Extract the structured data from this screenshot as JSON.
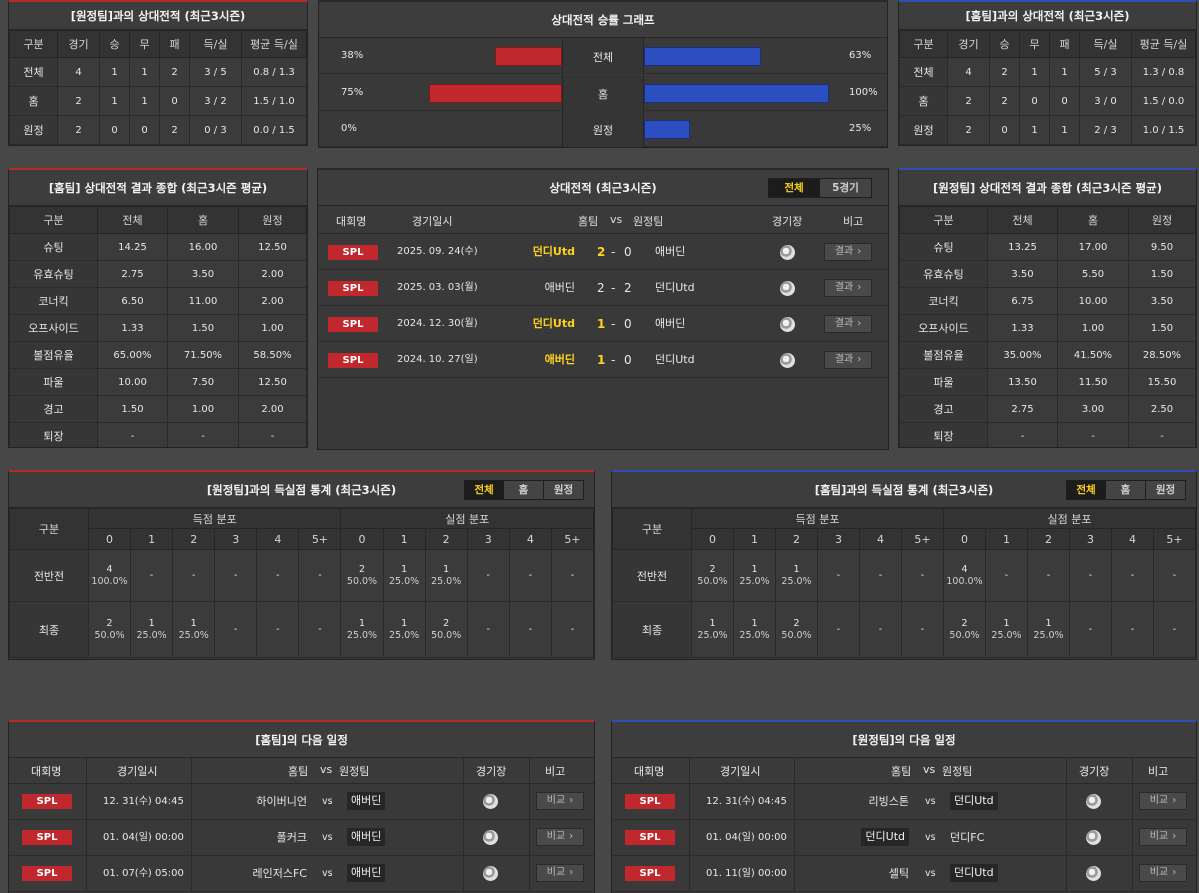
{
  "h2h_left": {
    "title": "[원정팀]과의 상대전적 (최근3시즌)",
    "headers": [
      "구분",
      "경기",
      "승",
      "무",
      "패",
      "득/실",
      "평균 득/실"
    ],
    "rows": [
      [
        "전체",
        "4",
        "1",
        "1",
        "2",
        "3 / 5",
        "0.8 / 1.3"
      ],
      [
        "홈",
        "2",
        "1",
        "1",
        "0",
        "3 / 2",
        "1.5 / 1.0"
      ],
      [
        "원정",
        "2",
        "0",
        "0",
        "2",
        "0 / 3",
        "0.0 / 1.5"
      ]
    ]
  },
  "h2h_right": {
    "title": "[홈팀]과의 상대전적 (최근3시즌)",
    "headers": [
      "구분",
      "경기",
      "승",
      "무",
      "패",
      "득/실",
      "평균 득/실"
    ],
    "rows": [
      [
        "전체",
        "4",
        "2",
        "1",
        "1",
        "5 / 3",
        "1.3 / 0.8"
      ],
      [
        "홈",
        "2",
        "2",
        "0",
        "0",
        "3 / 0",
        "1.5 / 0.0"
      ],
      [
        "원정",
        "2",
        "0",
        "1",
        "1",
        "2 / 3",
        "1.0 / 1.5"
      ]
    ]
  },
  "win_graph": {
    "title": "상대전적 승률 그래프",
    "colors": {
      "home": "#c0282d",
      "away": "#2b4fc0"
    },
    "rows": [
      {
        "label": "전체",
        "left_pct": "38%",
        "left_value": 38,
        "right_pct": "63%",
        "right_value": 63
      },
      {
        "label": "홈",
        "left_pct": "75%",
        "left_value": 75,
        "right_pct": "100%",
        "right_value": 100
      },
      {
        "label": "원정",
        "left_pct": "0%",
        "left_value": 0,
        "right_pct": "25%",
        "right_value": 25
      }
    ]
  },
  "summary_home": {
    "title": "[홈팀] 상대전적 결과 종합 (최근3시즌 평균)",
    "headers": [
      "구분",
      "전체",
      "홈",
      "원정"
    ],
    "rows": [
      [
        "슈팅",
        "14.25",
        "16.00",
        "12.50"
      ],
      [
        "유효슈팅",
        "2.75",
        "3.50",
        "2.00"
      ],
      [
        "코너킥",
        "6.50",
        "11.00",
        "2.00"
      ],
      [
        "오프사이드",
        "1.33",
        "1.50",
        "1.00"
      ],
      [
        "볼점유율",
        "65.00%",
        "71.50%",
        "58.50%"
      ],
      [
        "파울",
        "10.00",
        "7.50",
        "12.50"
      ],
      [
        "경고",
        "1.50",
        "1.00",
        "2.00"
      ],
      [
        "퇴장",
        "-",
        "-",
        "-"
      ]
    ]
  },
  "summary_away": {
    "title": "[원정팀] 상대전적 결과 종합 (최근3시즌 평균)",
    "headers": [
      "구분",
      "전체",
      "홈",
      "원정"
    ],
    "rows": [
      [
        "슈팅",
        "13.25",
        "17.00",
        "9.50"
      ],
      [
        "유효슈팅",
        "3.50",
        "5.50",
        "1.50"
      ],
      [
        "코너킥",
        "6.75",
        "10.00",
        "3.50"
      ],
      [
        "오프사이드",
        "1.33",
        "1.00",
        "1.50"
      ],
      [
        "볼점유율",
        "35.00%",
        "41.50%",
        "28.50%"
      ],
      [
        "파울",
        "13.50",
        "11.50",
        "15.50"
      ],
      [
        "경고",
        "2.75",
        "3.00",
        "2.50"
      ],
      [
        "퇴장",
        "-",
        "-",
        "-"
      ]
    ]
  },
  "matches": {
    "title": "상대전적 (최근3시즌)",
    "tabs": [
      "전체",
      "5경기"
    ],
    "headers": {
      "league": "대회명",
      "date": "경기일시",
      "home": "홈팀",
      "vs": "vs",
      "away": "원정팀",
      "venue": "경기장",
      "note": "비고"
    },
    "rows": [
      {
        "league": "SPL",
        "date": "2025. 09. 24(수)",
        "home": "던디Utd",
        "home_hl": true,
        "hs": "2",
        "sep": "-",
        "as": "0",
        "away": "애버딘",
        "away_hl": false,
        "btn": "결과"
      },
      {
        "league": "SPL",
        "date": "2025. 03. 03(월)",
        "home": "애버딘",
        "home_hl": false,
        "hs": "2",
        "sep": "-",
        "as": "2",
        "away": "던디Utd",
        "away_hl": false,
        "btn": "결과"
      },
      {
        "league": "SPL",
        "date": "2024. 12. 30(월)",
        "home": "던디Utd",
        "home_hl": true,
        "hs": "1",
        "sep": "-",
        "as": "0",
        "away": "애버딘",
        "away_hl": false,
        "btn": "결과"
      },
      {
        "league": "SPL",
        "date": "2024. 10. 27(일)",
        "home": "애버딘",
        "home_hl": true,
        "hs": "1",
        "sep": "-",
        "as": "0",
        "away": "던디Utd",
        "away_hl": false,
        "btn": "결과"
      }
    ]
  },
  "goal_left": {
    "title": "[원정팀]과의 득실점 통계 (최근3시즌)",
    "tabs": [
      "전체",
      "홈",
      "원정"
    ],
    "group_label": "구분",
    "scored_label": "득점 분포",
    "conceded_label": "실점 분포",
    "cols": [
      "0",
      "1",
      "2",
      "3",
      "4",
      "5+"
    ],
    "rows": [
      {
        "label": "전반전",
        "cells": [
          [
            "4",
            "100.0%"
          ],
          [
            "-",
            ""
          ],
          [
            "-",
            ""
          ],
          [
            "-",
            ""
          ],
          [
            "-",
            ""
          ],
          [
            "-",
            ""
          ],
          [
            "2",
            "50.0%"
          ],
          [
            "1",
            "25.0%"
          ],
          [
            "1",
            "25.0%"
          ],
          [
            "-",
            ""
          ],
          [
            "-",
            ""
          ],
          [
            "-",
            ""
          ]
        ]
      },
      {
        "label": "최종",
        "cells": [
          [
            "2",
            "50.0%"
          ],
          [
            "1",
            "25.0%"
          ],
          [
            "1",
            "25.0%"
          ],
          [
            "-",
            ""
          ],
          [
            "-",
            ""
          ],
          [
            "-",
            ""
          ],
          [
            "1",
            "25.0%"
          ],
          [
            "1",
            "25.0%"
          ],
          [
            "2",
            "50.0%"
          ],
          [
            "-",
            ""
          ],
          [
            "-",
            ""
          ],
          [
            "-",
            ""
          ]
        ]
      }
    ]
  },
  "goal_right": {
    "title": "[홈팀]과의 득실점 통계 (최근3시즌)",
    "tabs": [
      "전체",
      "홈",
      "원정"
    ],
    "group_label": "구분",
    "scored_label": "득점 분포",
    "conceded_label": "실점 분포",
    "cols": [
      "0",
      "1",
      "2",
      "3",
      "4",
      "5+"
    ],
    "rows": [
      {
        "label": "전반전",
        "cells": [
          [
            "2",
            "50.0%"
          ],
          [
            "1",
            "25.0%"
          ],
          [
            "1",
            "25.0%"
          ],
          [
            "-",
            ""
          ],
          [
            "-",
            ""
          ],
          [
            "-",
            ""
          ],
          [
            "4",
            "100.0%"
          ],
          [
            "-",
            ""
          ],
          [
            "-",
            ""
          ],
          [
            "-",
            ""
          ],
          [
            "-",
            ""
          ],
          [
            "-",
            ""
          ]
        ]
      },
      {
        "label": "최종",
        "cells": [
          [
            "1",
            "25.0%"
          ],
          [
            "1",
            "25.0%"
          ],
          [
            "2",
            "50.0%"
          ],
          [
            "-",
            ""
          ],
          [
            "-",
            ""
          ],
          [
            "-",
            ""
          ],
          [
            "2",
            "50.0%"
          ],
          [
            "1",
            "25.0%"
          ],
          [
            "1",
            "25.0%"
          ],
          [
            "-",
            ""
          ],
          [
            "-",
            ""
          ],
          [
            "-",
            ""
          ]
        ]
      }
    ]
  },
  "next_home": {
    "title": "[홈팀]의 다음 일정",
    "headers": {
      "league": "대회명",
      "date": "경기일시",
      "home": "홈팀",
      "vs": "vs",
      "away": "원정팀",
      "venue": "경기장",
      "note": "비고"
    },
    "rows": [
      {
        "league": "SPL",
        "date": "12. 31(수) 04:45",
        "home": "하이버니언",
        "home_box": false,
        "vs": "vs",
        "away": "애버딘",
        "away_box": true,
        "btn": "비교"
      },
      {
        "league": "SPL",
        "date": "01. 04(일) 00:00",
        "home": "폴커크",
        "home_box": false,
        "vs": "vs",
        "away": "애버딘",
        "away_box": true,
        "btn": "비교"
      },
      {
        "league": "SPL",
        "date": "01. 07(수) 05:00",
        "home": "레인저스FC",
        "home_box": false,
        "vs": "vs",
        "away": "애버딘",
        "away_box": true,
        "btn": "비교"
      }
    ]
  },
  "next_away": {
    "title": "[원정팀]의 다음 일정",
    "headers": {
      "league": "대회명",
      "date": "경기일시",
      "home": "홈팀",
      "vs": "vs",
      "away": "원정팀",
      "venue": "경기장",
      "note": "비고"
    },
    "rows": [
      {
        "league": "SPL",
        "date": "12. 31(수) 04:45",
        "home": "리빙스톤",
        "home_box": false,
        "vs": "vs",
        "away": "던디Utd",
        "away_box": true,
        "btn": "비교"
      },
      {
        "league": "SPL",
        "date": "01. 04(일) 00:00",
        "home": "던디Utd",
        "home_box": true,
        "vs": "vs",
        "away": "던디FC",
        "away_box": false,
        "btn": "비교"
      },
      {
        "league": "SPL",
        "date": "01. 11(일) 00:00",
        "home": "셀틱",
        "home_box": false,
        "vs": "vs",
        "away": "던디Utd",
        "away_box": true,
        "btn": "비교"
      }
    ]
  }
}
